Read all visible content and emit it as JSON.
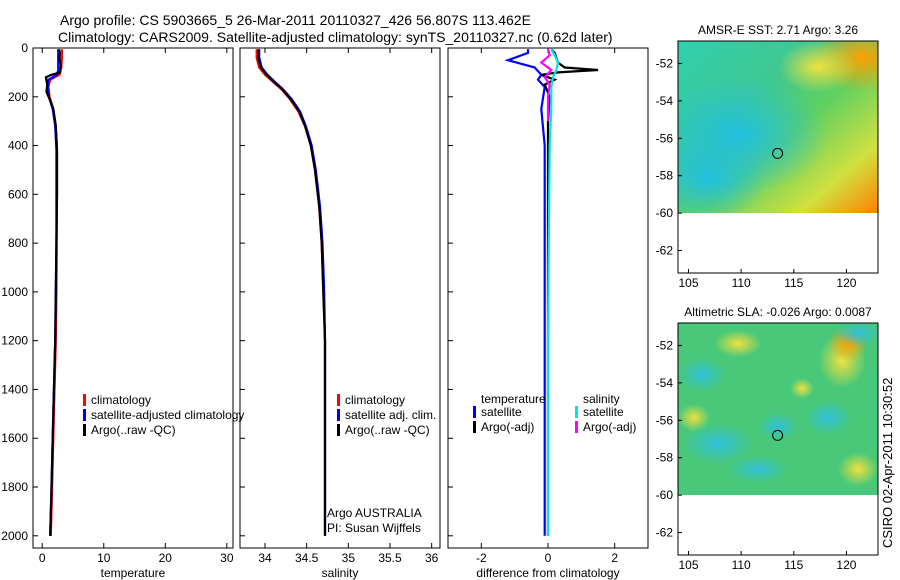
{
  "header": {
    "line1": "Argo profile: CS 5903665_5 26-Mar-2011 20110327_426 56.807S 113.462E",
    "line2": "Climatology: CARS2009. Satellite-adjusted climatology: synTS_20110327.nc (0.62d later)"
  },
  "footer": {
    "stamp": "CSIRO 02-Apr-2011 10:30:52"
  },
  "colors": {
    "clim": "#ff0000",
    "sat": "#0000ff",
    "argo": "#000000",
    "sat_diff_s": "#00e5e5",
    "argo_diff_s": "#ff00ff"
  },
  "chart_data": [
    {
      "type": "line",
      "id": "temperature",
      "xlabel": "temperature",
      "xlim": [
        -1.5,
        31
      ],
      "ylim": [
        0,
        2050
      ],
      "xticks": [
        0,
        10,
        20,
        30
      ],
      "yticks": [
        0,
        200,
        400,
        600,
        800,
        1000,
        1200,
        1400,
        1600,
        1800,
        2000
      ],
      "legend": {
        "position": "lower-right",
        "entries": [
          "climatology",
          "satellite-adjusted climatology",
          "Argo(..raw -QC)"
        ]
      },
      "series": [
        {
          "name": "climatology",
          "color": "#ff0000",
          "points": [
            [
              3.2,
              5
            ],
            [
              3.2,
              40
            ],
            [
              3.1,
              80
            ],
            [
              2.8,
              110
            ],
            [
              1.3,
              130
            ],
            [
              1.0,
              160
            ],
            [
              1.2,
              200
            ],
            [
              1.8,
              250
            ],
            [
              2.2,
              320
            ],
            [
              2.4,
              420
            ],
            [
              2.4,
              600
            ],
            [
              2.35,
              800
            ],
            [
              2.3,
              1000
            ],
            [
              2.2,
              1200
            ],
            [
              2.0,
              1400
            ],
            [
              1.8,
              1600
            ],
            [
              1.6,
              1800
            ],
            [
              1.4,
              2000
            ]
          ]
        },
        {
          "name": "satellite-adjusted climatology",
          "color": "#0000ff",
          "points": [
            [
              2.6,
              5
            ],
            [
              2.6,
              40
            ],
            [
              2.6,
              90
            ],
            [
              2.4,
              110
            ],
            [
              1.0,
              130
            ],
            [
              0.9,
              160
            ],
            [
              1.1,
              200
            ],
            [
              1.7,
              250
            ],
            [
              2.1,
              320
            ],
            [
              2.3,
              420
            ],
            [
              2.3,
              600
            ],
            [
              2.3,
              800
            ],
            [
              2.2,
              1000
            ],
            [
              2.1,
              1200
            ],
            [
              1.9,
              1400
            ],
            [
              1.7,
              1600
            ],
            [
              1.5,
              1800
            ],
            [
              1.3,
              2000
            ]
          ]
        },
        {
          "name": "Argo(..raw -QC)",
          "color": "#000000",
          "points": [
            [
              2.7,
              5
            ],
            [
              2.9,
              20
            ],
            [
              2.8,
              40
            ],
            [
              3.0,
              70
            ],
            [
              2.9,
              100
            ],
            [
              1.5,
              110
            ],
            [
              0.6,
              120
            ],
            [
              0.8,
              150
            ],
            [
              0.7,
              180
            ],
            [
              1.2,
              210
            ],
            [
              1.8,
              250
            ],
            [
              2.2,
              320
            ],
            [
              2.4,
              420
            ],
            [
              2.4,
              600
            ],
            [
              2.3,
              800
            ],
            [
              2.2,
              1000
            ],
            [
              2.1,
              1200
            ],
            [
              1.9,
              1400
            ],
            [
              1.7,
              1600
            ],
            [
              1.5,
              1800
            ],
            [
              1.3,
              2000
            ]
          ]
        }
      ]
    },
    {
      "type": "line",
      "id": "salinity",
      "xlabel": "salinity",
      "xlim": [
        33.7,
        36.1
      ],
      "ylim": [
        0,
        2050
      ],
      "xticks": [
        34,
        34.5,
        35,
        35.5,
        36
      ],
      "annotations": [
        "Argo AUSTRALIA",
        "PI: Susan Wijffels"
      ],
      "legend": {
        "position": "lower-right",
        "entries": [
          "climatology",
          "satellite adj. clim.",
          "Argo(..raw -QC)"
        ]
      },
      "series": [
        {
          "name": "climatology",
          "color": "#ff0000",
          "points": [
            [
              33.9,
              5
            ],
            [
              33.9,
              40
            ],
            [
              33.93,
              80
            ],
            [
              34.0,
              110
            ],
            [
              34.1,
              140
            ],
            [
              34.2,
              170
            ],
            [
              34.3,
              210
            ],
            [
              34.4,
              260
            ],
            [
              34.48,
              320
            ],
            [
              34.55,
              400
            ],
            [
              34.6,
              500
            ],
            [
              34.65,
              650
            ],
            [
              34.68,
              800
            ],
            [
              34.7,
              1000
            ],
            [
              34.72,
              1200
            ],
            [
              34.72,
              1500
            ],
            [
              34.72,
              1800
            ],
            [
              34.72,
              2000
            ]
          ]
        },
        {
          "name": "satellite adj. clim.",
          "color": "#0000ff",
          "points": [
            [
              33.93,
              5
            ],
            [
              33.93,
              40
            ],
            [
              33.96,
              80
            ],
            [
              34.03,
              110
            ],
            [
              34.12,
              140
            ],
            [
              34.22,
              170
            ],
            [
              34.32,
              210
            ],
            [
              34.42,
              260
            ],
            [
              34.49,
              320
            ],
            [
              34.56,
              400
            ],
            [
              34.61,
              500
            ],
            [
              34.66,
              650
            ],
            [
              34.69,
              800
            ],
            [
              34.71,
              1000
            ],
            [
              34.72,
              1200
            ],
            [
              34.72,
              1500
            ],
            [
              34.72,
              1800
            ],
            [
              34.72,
              2000
            ]
          ]
        },
        {
          "name": "Argo(..raw -QC)",
          "color": "#000000",
          "points": [
            [
              33.92,
              5
            ],
            [
              33.92,
              40
            ],
            [
              33.95,
              80
            ],
            [
              34.02,
              110
            ],
            [
              34.11,
              140
            ],
            [
              34.21,
              170
            ],
            [
              34.31,
              210
            ],
            [
              34.41,
              260
            ],
            [
              34.48,
              320
            ],
            [
              34.55,
              400
            ],
            [
              34.6,
              500
            ],
            [
              34.65,
              650
            ],
            [
              34.68,
              800
            ],
            [
              34.7,
              1000
            ],
            [
              34.72,
              1200
            ],
            [
              34.72,
              1500
            ],
            [
              34.72,
              1800
            ],
            [
              34.72,
              2000
            ]
          ]
        }
      ]
    },
    {
      "type": "line",
      "id": "difference",
      "xlabel": "difference from climatology",
      "xlim": [
        -3,
        3
      ],
      "ylim": [
        0,
        2050
      ],
      "xticks": [
        -2,
        0,
        2
      ],
      "legend": {
        "position": "lower",
        "group_titles": [
          "temperature",
          "salinity"
        ],
        "entries": [
          "satellite",
          "Argo(-adj)",
          "satellite",
          "Argo(-adj)"
        ]
      },
      "series": [
        {
          "name": "temperature satellite",
          "color": "#0000ff",
          "points": [
            [
              -0.6,
              5
            ],
            [
              -0.6,
              20
            ],
            [
              -1.2,
              50
            ],
            [
              -0.4,
              80
            ],
            [
              -0.2,
              110
            ],
            [
              -0.3,
              130
            ],
            [
              -0.1,
              160
            ],
            [
              -0.2,
              250
            ],
            [
              -0.1,
              400
            ],
            [
              -0.1,
              800
            ],
            [
              -0.1,
              1200
            ],
            [
              -0.1,
              1600
            ],
            [
              -0.1,
              2000
            ]
          ]
        },
        {
          "name": "temperature Argo(-adj)",
          "color": "#000000",
          "points": [
            [
              0.1,
              5
            ],
            [
              0.2,
              20
            ],
            [
              0.3,
              60
            ],
            [
              0.5,
              80
            ],
            [
              1.5,
              90
            ],
            [
              0.3,
              100
            ],
            [
              -0.2,
              110
            ],
            [
              0.2,
              130
            ],
            [
              -0.1,
              150
            ],
            [
              0.05,
              200
            ],
            [
              0.0,
              300
            ],
            [
              0.0,
              800
            ],
            [
              0.0,
              1200
            ],
            [
              0.0,
              1600
            ],
            [
              0.0,
              2000
            ]
          ]
        },
        {
          "name": "salinity satellite",
          "color": "#00e5e5",
          "points": [
            [
              0.1,
              5
            ],
            [
              0.2,
              30
            ],
            [
              0.3,
              60
            ],
            [
              0.25,
              90
            ],
            [
              0.15,
              120
            ],
            [
              0.1,
              160
            ],
            [
              0.1,
              250
            ],
            [
              0.05,
              400
            ],
            [
              0.02,
              800
            ],
            [
              0.0,
              1200
            ],
            [
              0.0,
              1600
            ],
            [
              0.0,
              2000
            ]
          ]
        },
        {
          "name": "salinity Argo(-adj)",
          "color": "#ff00ff",
          "points": [
            [
              0.0,
              5
            ],
            [
              0.05,
              30
            ],
            [
              -0.2,
              60
            ],
            [
              0.1,
              90
            ],
            [
              -0.1,
              120
            ],
            [
              0.05,
              150
            ],
            [
              0.0,
              200
            ],
            [
              0.0,
              300
            ]
          ]
        }
      ]
    },
    {
      "type": "heatmap",
      "id": "sst-map",
      "title": "AMSR-E SST: 2.71 Argo: 3.26",
      "xlim": [
        104,
        123
      ],
      "ylim": [
        -63.2,
        -50.8
      ],
      "xticks": [
        105,
        110,
        115,
        120
      ],
      "yticks": [
        -52,
        -54,
        -56,
        -58,
        -60,
        -62
      ],
      "data_extent_lat": [
        -60,
        -50.8
      ],
      "marker": {
        "lon": 113.462,
        "lat": -56.807
      }
    },
    {
      "type": "heatmap",
      "id": "sla-map",
      "title": "Altimetric SLA: -0.026 Argo: 0.0087",
      "xlim": [
        104,
        123
      ],
      "ylim": [
        -63.2,
        -50.8
      ],
      "xticks": [
        105,
        110,
        115,
        120
      ],
      "yticks": [
        -52,
        -54,
        -56,
        -58,
        -60,
        -62
      ],
      "data_extent_lat": [
        -60,
        -50.8
      ],
      "marker": {
        "lon": 113.462,
        "lat": -56.807
      }
    }
  ]
}
